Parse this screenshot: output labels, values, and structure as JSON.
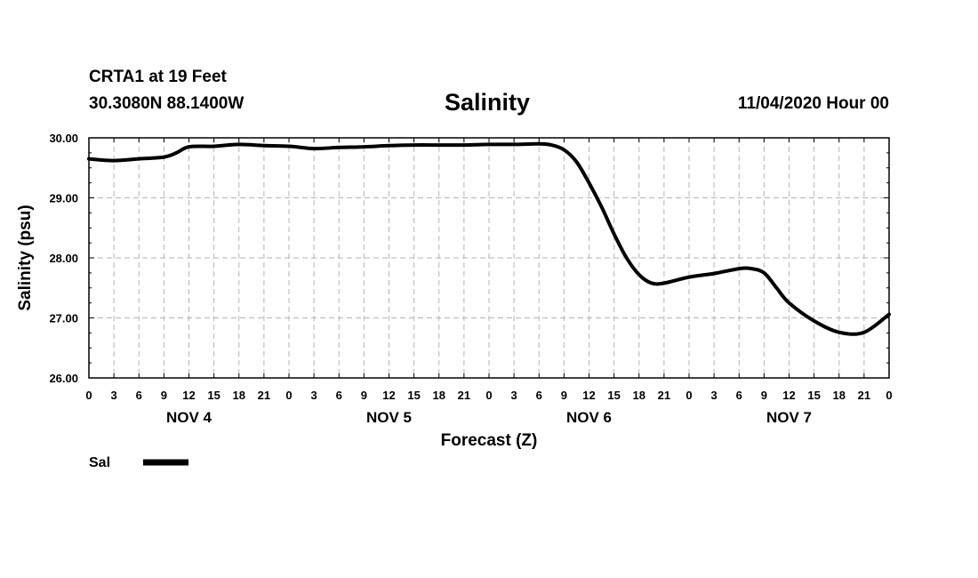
{
  "header": {
    "station": "CRTA1 at 19 Feet",
    "coords": "30.3080N 88.1400W",
    "title": "Salinity",
    "runtime": "11/04/2020 Hour 00"
  },
  "chart_data": {
    "type": "line",
    "title": "Salinity",
    "xlabel": "Forecast (Z)",
    "ylabel": "Salinity (psu)",
    "ylim": [
      26,
      30
    ],
    "yticks": [
      "26.00",
      "27.00",
      "28.00",
      "29.00",
      "30.00"
    ],
    "xlim_hours": [
      0,
      96
    ],
    "xtick_labels": [
      "0",
      "3",
      "6",
      "9",
      "12",
      "15",
      "18",
      "21",
      "0",
      "3",
      "6",
      "9",
      "12",
      "15",
      "18",
      "21",
      "0",
      "3",
      "6",
      "9",
      "12",
      "15",
      "18",
      "21",
      "0",
      "3",
      "6",
      "9",
      "12",
      "15",
      "18",
      "21",
      "0"
    ],
    "day_labels": [
      "NOV 4",
      "NOV 5",
      "NOV 6",
      "NOV 7"
    ],
    "grid": true,
    "legend_position": "bottom-left",
    "series": [
      {
        "name": "Sal",
        "color": "#000000",
        "x_hours": [
          0,
          3,
          6,
          9,
          10.5,
          12,
          15,
          18,
          21,
          24,
          27,
          30,
          33,
          36,
          39,
          42,
          45,
          48,
          51,
          54,
          55.5,
          57,
          58.5,
          60,
          61.5,
          63,
          64.5,
          66,
          67.5,
          69,
          72,
          75,
          78,
          79.5,
          81,
          82.5,
          84,
          87,
          90,
          93,
          96
        ],
        "values": [
          29.65,
          29.62,
          29.65,
          29.68,
          29.75,
          29.85,
          29.86,
          29.89,
          29.87,
          29.86,
          29.82,
          29.84,
          29.85,
          29.87,
          29.88,
          29.88,
          29.88,
          29.89,
          29.89,
          29.9,
          29.88,
          29.8,
          29.6,
          29.25,
          28.85,
          28.4,
          28.0,
          27.72,
          27.58,
          27.58,
          27.68,
          27.74,
          27.82,
          27.82,
          27.75,
          27.5,
          27.25,
          26.95,
          26.76,
          26.76,
          27.06
        ]
      }
    ]
  },
  "legend": {
    "label": "Sal"
  }
}
